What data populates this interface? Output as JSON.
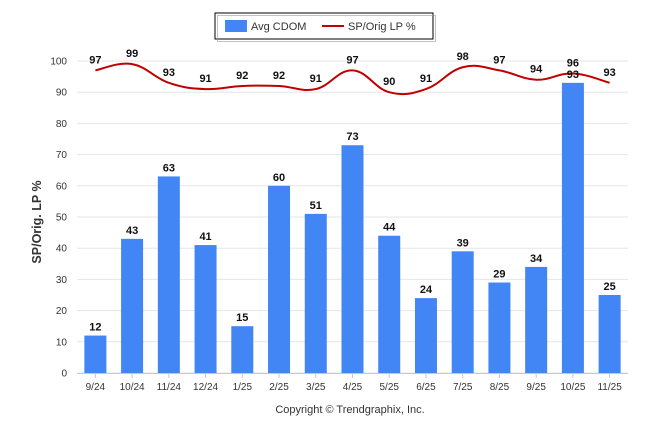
{
  "chart_data": {
    "type": "bar+line",
    "categories": [
      "9/24",
      "10/24",
      "11/24",
      "12/24",
      "1/25",
      "2/25",
      "3/25",
      "4/25",
      "5/25",
      "6/25",
      "7/25",
      "8/25",
      "9/25",
      "10/25",
      "11/25"
    ],
    "series": [
      {
        "name": "Avg CDOM",
        "type": "bar",
        "color": "#4285f4",
        "values": [
          12,
          43,
          63,
          41,
          15,
          60,
          51,
          73,
          44,
          24,
          39,
          29,
          34,
          93,
          25
        ]
      },
      {
        "name": "SP/Orig LP %",
        "type": "line",
        "color": "#c00000",
        "values": [
          97,
          99,
          93,
          91,
          92,
          92,
          91,
          97,
          90,
          91,
          98,
          97,
          94,
          96,
          93
        ]
      }
    ],
    "ylabel": "SP/Orig. LP %",
    "xlabel": "",
    "ylim": [
      0,
      100
    ],
    "yticks": [
      0,
      10,
      20,
      30,
      40,
      50,
      60,
      70,
      80,
      90,
      100
    ],
    "grid": true,
    "legend_position": "top-center"
  },
  "footer": {
    "copyright": "Copyright © Trendgraphix, Inc."
  }
}
